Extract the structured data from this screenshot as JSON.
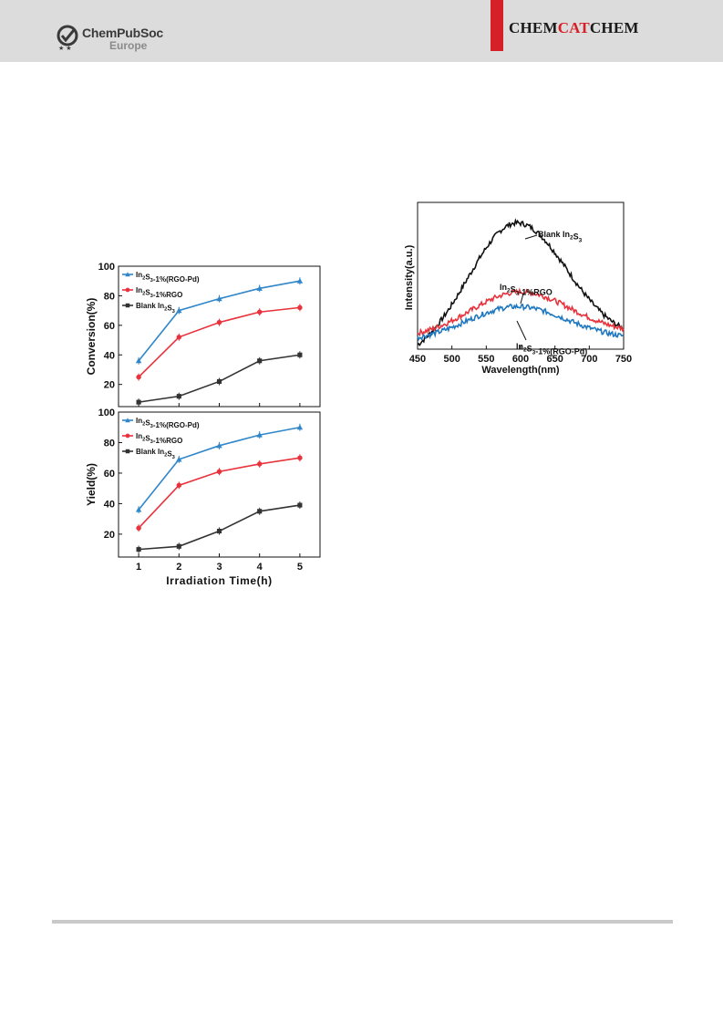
{
  "header": {
    "publisher_line1": "ChemPubSoc",
    "publisher_line2": "Europe",
    "journal_part1": "CHEM",
    "journal_part2": "CAT",
    "journal_part3": "CHEM",
    "accent_color": "#d62027"
  },
  "chart_data": [
    {
      "type": "line",
      "ylabel": "Conversion(%)",
      "xlabel": "",
      "x": [
        1,
        2,
        3,
        4,
        5
      ],
      "xlim": [
        0.5,
        5.5
      ],
      "ylim": [
        5,
        100
      ],
      "yticks": [
        20,
        40,
        60,
        80,
        100
      ],
      "legend_position": "top-left",
      "series": [
        {
          "name": "In2S3-1%(RGO-Pd)",
          "color": "#2f86c8",
          "marker": "triangle",
          "values": [
            36,
            70,
            78,
            85,
            90
          ]
        },
        {
          "name": "In2S3-1%RGO",
          "color": "#e8323c",
          "marker": "circle",
          "values": [
            25,
            52,
            62,
            69,
            72
          ]
        },
        {
          "name": "Blank In2S3",
          "color": "#333333",
          "marker": "square",
          "values": [
            8,
            12,
            22,
            36,
            40
          ]
        }
      ]
    },
    {
      "type": "line",
      "ylabel": "Yield(%)",
      "xlabel": "Irradiation Time(h)",
      "x": [
        1,
        2,
        3,
        4,
        5
      ],
      "xlim": [
        0.5,
        5.5
      ],
      "ylim": [
        5,
        100
      ],
      "yticks": [
        20,
        40,
        60,
        80,
        100
      ],
      "xticks": [
        1,
        2,
        3,
        4,
        5
      ],
      "legend_position": "top-left",
      "series": [
        {
          "name": "In2S3-1%(RGO-Pd)",
          "color": "#2f86c8",
          "marker": "triangle",
          "values": [
            36,
            69,
            78,
            85,
            90
          ]
        },
        {
          "name": "In2S3-1%RGO",
          "color": "#e8323c",
          "marker": "circle",
          "values": [
            24,
            52,
            61,
            66,
            70
          ]
        },
        {
          "name": "Blank In2S3",
          "color": "#333333",
          "marker": "square",
          "values": [
            10,
            12,
            22,
            35,
            39
          ]
        }
      ]
    },
    {
      "type": "line",
      "ylabel": "Intensity(a.u.)",
      "xlabel": "Wavelength(nm)",
      "xlim": [
        450,
        750
      ],
      "xticks": [
        450,
        500,
        550,
        600,
        650,
        700,
        750
      ],
      "series": [
        {
          "name": "Blank In2S3",
          "color": "#111111",
          "peak_nm": 595,
          "peak": 0.86,
          "edge_left": 0.03,
          "edge_right": 0.14
        },
        {
          "name": "In2S3-1%RGO",
          "color": "#e8323c",
          "peak_nm": 600,
          "peak": 0.39,
          "edge_left": 0.11,
          "edge_right": 0.14
        },
        {
          "name": "In2S3-1%(RGO-Pd)",
          "color": "#1f78c0",
          "peak_nm": 595,
          "peak": 0.29,
          "edge_left": 0.08,
          "edge_right": 0.09
        }
      ],
      "annotations": [
        "Blank In2S3",
        "In2S3-1%RGO",
        "In2S3-1%(RGO-Pd)"
      ]
    }
  ]
}
